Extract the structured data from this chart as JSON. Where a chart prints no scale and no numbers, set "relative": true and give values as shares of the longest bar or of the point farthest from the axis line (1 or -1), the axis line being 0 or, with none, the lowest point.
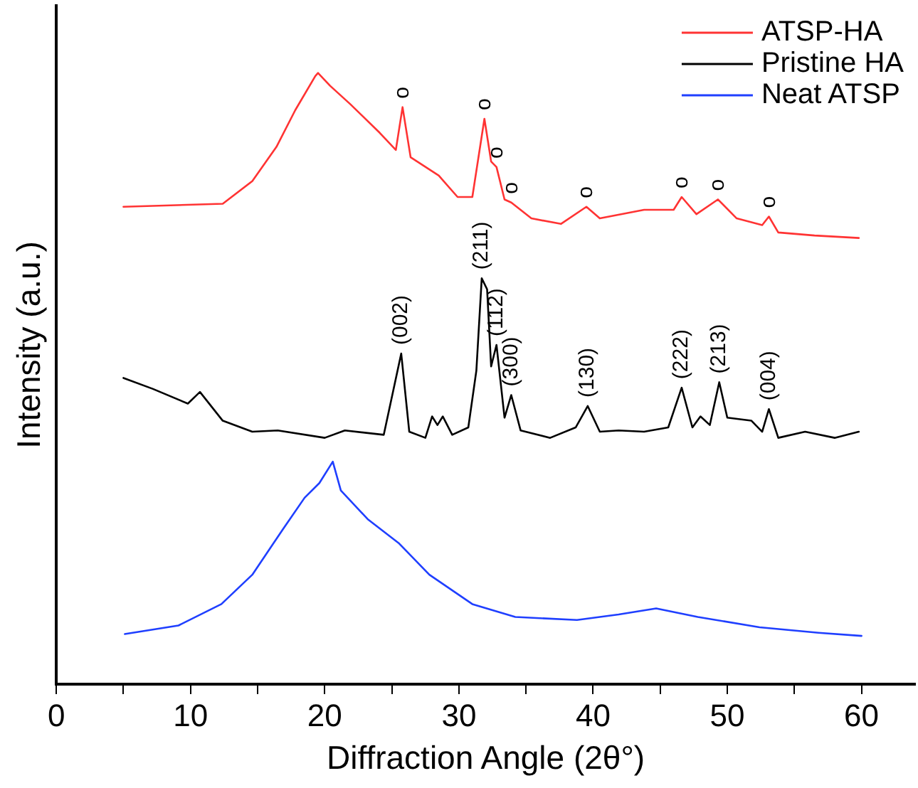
{
  "chart_data": {
    "type": "line",
    "relative": true,
    "xlabel": "Diffraction Angle (2θ°)",
    "ylabel": "Intensity (a.u.)",
    "xlim": [
      0,
      64
    ],
    "xticks": [
      0,
      {
        "value": 5,
        "label": null
      },
      10,
      {
        "value": 15,
        "label": null
      },
      20,
      {
        "value": 25,
        "label": null
      },
      30,
      {
        "value": 35,
        "label": null
      },
      40,
      {
        "value": 45,
        "label": null
      },
      50,
      {
        "value": 55,
        "label": null
      },
      60
    ],
    "grid": false,
    "legend": "top right",
    "series": [
      {
        "name": "ATSP-HA",
        "color": "#ff3333",
        "x": [
          5.0,
          12.4,
          14.6,
          16.4,
          17.8,
          19.3,
          19.5,
          20.4,
          21.9,
          24.1,
          25.3,
          25.8,
          26.4,
          28.5,
          29.9,
          31.0,
          31.9,
          32.4,
          32.8,
          33.4,
          33.9,
          35.4,
          37.6,
          39.5,
          40.5,
          43.8,
          46.0,
          46.6,
          47.7,
          49.3,
          50.7,
          52.6,
          53.1,
          53.8,
          56.5,
          59.8
        ],
        "values": [
          0.781,
          0.786,
          0.823,
          0.879,
          0.939,
          0.995,
          1.0,
          0.979,
          0.949,
          0.902,
          0.874,
          0.944,
          0.862,
          0.832,
          0.797,
          0.797,
          0.925,
          0.855,
          0.846,
          0.793,
          0.788,
          0.762,
          0.753,
          0.781,
          0.762,
          0.776,
          0.776,
          0.797,
          0.769,
          0.793,
          0.762,
          0.751,
          0.765,
          0.739,
          0.734,
          0.73
        ]
      },
      {
        "name": "Pristine HA",
        "color": "#000000",
        "x": [
          5.0,
          7.2,
          9.8,
          10.7,
          12.4,
          14.6,
          16.5,
          20.0,
          21.5,
          24.4,
          25.7,
          26.3,
          27.5,
          28.0,
          28.4,
          28.8,
          29.5,
          30.7,
          31.3,
          31.7,
          32.1,
          32.4,
          32.8,
          33.4,
          33.9,
          34.6,
          36.8,
          38.7,
          39.6,
          40.5,
          41.9,
          43.8,
          45.6,
          46.6,
          47.4,
          48.0,
          48.7,
          49.4,
          50.0,
          51.8,
          52.6,
          53.1,
          53.8,
          55.8,
          58.0,
          59.8
        ],
        "values": [
          0.501,
          0.483,
          0.459,
          0.478,
          0.431,
          0.413,
          0.415,
          0.403,
          0.415,
          0.408,
          0.541,
          0.413,
          0.403,
          0.438,
          0.424,
          0.438,
          0.408,
          0.42,
          0.513,
          0.664,
          0.646,
          0.52,
          0.555,
          0.436,
          0.473,
          0.415,
          0.403,
          0.42,
          0.455,
          0.413,
          0.415,
          0.413,
          0.42,
          0.485,
          0.42,
          0.438,
          0.424,
          0.494,
          0.436,
          0.431,
          0.413,
          0.45,
          0.403,
          0.413,
          0.403,
          0.413
        ]
      },
      {
        "name": "Neat ATSP",
        "color": "#1f3fff",
        "x": [
          5.1,
          9.1,
          12.3,
          14.6,
          16.9,
          18.5,
          19.6,
          20.6,
          21.2,
          23.2,
          25.5,
          27.8,
          31.0,
          34.2,
          38.8,
          41.9,
          44.7,
          47.8,
          52.4,
          56.8,
          60.0
        ],
        "values": [
          0.082,
          0.096,
          0.131,
          0.179,
          0.254,
          0.305,
          0.329,
          0.364,
          0.317,
          0.27,
          0.231,
          0.179,
          0.131,
          0.11,
          0.105,
          0.114,
          0.124,
          0.11,
          0.093,
          0.084,
          0.079
        ]
      }
    ],
    "annotations": [
      {
        "text": "o",
        "x": 25.8,
        "y": 0.944
      },
      {
        "text": "o",
        "x": 31.9,
        "y": 0.925
      },
      {
        "text": "o",
        "x": 32.8,
        "y": 0.846
      },
      {
        "text": "o",
        "x": 33.9,
        "y": 0.788
      },
      {
        "text": "o",
        "x": 39.5,
        "y": 0.781
      },
      {
        "text": "o",
        "x": 46.6,
        "y": 0.797
      },
      {
        "text": "o",
        "x": 49.3,
        "y": 0.793
      },
      {
        "text": "o",
        "x": 53.1,
        "y": 0.765
      },
      {
        "text": "(002)",
        "x": 25.7,
        "y": 0.541
      },
      {
        "text": "(211)",
        "x": 31.7,
        "y": 0.664
      },
      {
        "text": "(112)",
        "x": 32.8,
        "y": 0.555
      },
      {
        "text": "(300)",
        "x": 33.9,
        "y": 0.473
      },
      {
        "text": "(130)",
        "x": 39.6,
        "y": 0.455
      },
      {
        "text": "(222)",
        "x": 46.6,
        "y": 0.485
      },
      {
        "text": "(213)",
        "x": 49.4,
        "y": 0.494
      },
      {
        "text": "(004)",
        "x": 53.1,
        "y": 0.45
      }
    ]
  }
}
